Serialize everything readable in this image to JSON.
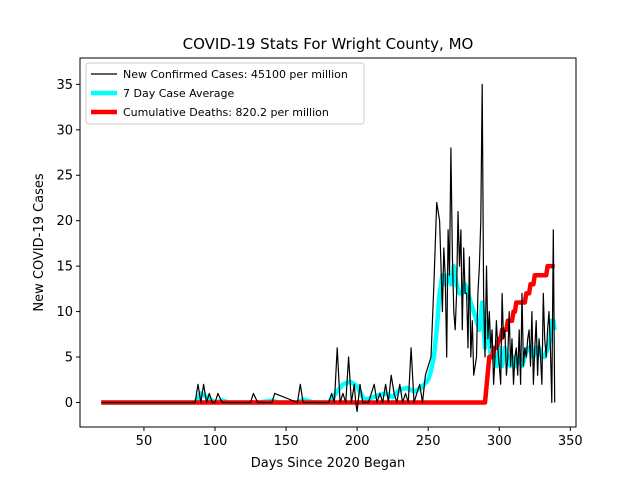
{
  "chart_data": {
    "type": "line",
    "title": "COVID-19 Stats For Wright County, MO",
    "xlabel": "Days Since 2020 Began",
    "ylabel": "New COVID-19 Cases",
    "xlim": [
      5,
      354
    ],
    "ylim": [
      -2.7,
      37.9
    ],
    "xticks": [
      50,
      100,
      150,
      200,
      250,
      300,
      350
    ],
    "yticks": [
      0,
      5,
      10,
      15,
      20,
      25,
      30,
      35
    ],
    "grid": false,
    "legend_position": "top-left",
    "series": [
      {
        "name": "New Confirmed Cases: 45100 per million",
        "color": "#000000",
        "style": "thin",
        "x": [
          20,
          60,
          86,
          88,
          90,
          92,
          94,
          96,
          98,
          100,
          102,
          105,
          108,
          110,
          125,
          127,
          130,
          132,
          140,
          142,
          158,
          160,
          162,
          180,
          182,
          184,
          186,
          188,
          190,
          192,
          194,
          196,
          198,
          199,
          200,
          202,
          204,
          206,
          208,
          210,
          212,
          214,
          216,
          218,
          220,
          222,
          224,
          226,
          228,
          230,
          232,
          234,
          236,
          238,
          240,
          242,
          244,
          246,
          248,
          250,
          252,
          254,
          256,
          258,
          260,
          261,
          262,
          263,
          264,
          265,
          266,
          267,
          268,
          269,
          270,
          271,
          272,
          273,
          274,
          275,
          276,
          277,
          278,
          279,
          280,
          281,
          282,
          283,
          284,
          285,
          286,
          287,
          288,
          289,
          290,
          291,
          292,
          293,
          294,
          295,
          296,
          297,
          298,
          299,
          300,
          301,
          302,
          303,
          304,
          305,
          306,
          307,
          308,
          309,
          310,
          311,
          312,
          313,
          314,
          315,
          316,
          317,
          318,
          319,
          320,
          321,
          322,
          323,
          324,
          325,
          326,
          327,
          328,
          329,
          330,
          331,
          332,
          333,
          334,
          335,
          336,
          337,
          338,
          339
        ],
        "values": [
          0,
          0,
          0,
          2,
          0,
          2,
          0,
          1,
          0,
          0,
          1,
          0,
          0,
          0,
          0,
          1,
          0,
          0,
          0,
          1,
          0,
          2,
          0,
          0,
          1,
          0,
          6,
          0,
          1,
          0,
          5,
          0,
          2,
          0,
          -1,
          2,
          0,
          0,
          0,
          1,
          2,
          0,
          1,
          0,
          2,
          0,
          3,
          1,
          0,
          2,
          0,
          1,
          0,
          6,
          0,
          1,
          2,
          0,
          3,
          4,
          5,
          13,
          22,
          20,
          10,
          17,
          14,
          5,
          19,
          14,
          28,
          16,
          10,
          8,
          12,
          21,
          15,
          19,
          8,
          17,
          12,
          12,
          6,
          16,
          5,
          9,
          3,
          4,
          5,
          12,
          15,
          20,
          35,
          12,
          5,
          15,
          7,
          10,
          6,
          8,
          2,
          5,
          9,
          6,
          4,
          2,
          12,
          7,
          8,
          3,
          5,
          10,
          4,
          7,
          2,
          5,
          6,
          3,
          8,
          2,
          12,
          4,
          6,
          5,
          7,
          8,
          4,
          10,
          2,
          6,
          9,
          3,
          7,
          5,
          2,
          12,
          7,
          5,
          8,
          10,
          6,
          0,
          19,
          0
        ]
      },
      {
        "name": "7 Day Case Average",
        "color": "#00ffff",
        "style": "thick",
        "x": [
          20,
          86,
          90,
          95,
          100,
          105,
          110,
          115,
          125,
          130,
          135,
          140,
          145,
          158,
          162,
          170,
          180,
          185,
          190,
          195,
          200,
          205,
          210,
          215,
          220,
          225,
          230,
          235,
          240,
          245,
          250,
          252,
          254,
          256,
          258,
          260,
          262,
          264,
          266,
          268,
          270,
          272,
          274,
          276,
          278,
          280,
          282,
          284,
          286,
          288,
          290,
          292,
          294,
          296,
          298,
          300,
          302,
          304,
          306,
          308,
          310,
          312,
          314,
          316,
          318,
          320,
          322,
          324,
          326,
          328,
          330,
          332,
          334,
          336,
          337,
          338,
          339
        ],
        "values": [
          0,
          0,
          1,
          0.5,
          0,
          0.2,
          0,
          0,
          0,
          0,
          0.1,
          0.2,
          0,
          0,
          0.3,
          0,
          0,
          1,
          2,
          2.3,
          1.8,
          0.3,
          0.5,
          0.8,
          1,
          0.6,
          1.4,
          1.6,
          1.2,
          1.6,
          2.5,
          3.5,
          5,
          8,
          12,
          14,
          13,
          14,
          13,
          15,
          13,
          12,
          12,
          13,
          12,
          11,
          10,
          9,
          8,
          11,
          6,
          9,
          5,
          5,
          4,
          6,
          4,
          6,
          5,
          4,
          5,
          4,
          5,
          4,
          5,
          6,
          6,
          5,
          6,
          6,
          5,
          5,
          6,
          7,
          9,
          9,
          8
        ]
      },
      {
        "name": "Cumulative Deaths: 820.2 per million",
        "color": "#ff0000",
        "style": "thick",
        "x": [
          20,
          290,
          293,
          294,
          295,
          296,
          297,
          298,
          300,
          301,
          302,
          303,
          304,
          305,
          306,
          307,
          308,
          309,
          310,
          311,
          312,
          313,
          314,
          315,
          316,
          317,
          318,
          319,
          320,
          321,
          322,
          323,
          324,
          325,
          326,
          327,
          328,
          329,
          330,
          331,
          332,
          333,
          334,
          335,
          336,
          337,
          338,
          339
        ],
        "values": [
          0,
          0,
          5,
          5,
          5,
          6,
          6,
          6,
          7,
          7,
          8,
          8,
          8,
          8,
          9,
          9,
          9,
          9,
          10,
          10,
          11,
          11,
          11,
          11,
          11,
          11,
          11,
          12,
          12,
          12,
          13,
          13,
          13,
          14,
          14,
          14,
          14,
          14,
          14,
          14,
          14,
          14,
          15,
          15,
          15,
          15,
          15,
          15
        ]
      }
    ]
  }
}
